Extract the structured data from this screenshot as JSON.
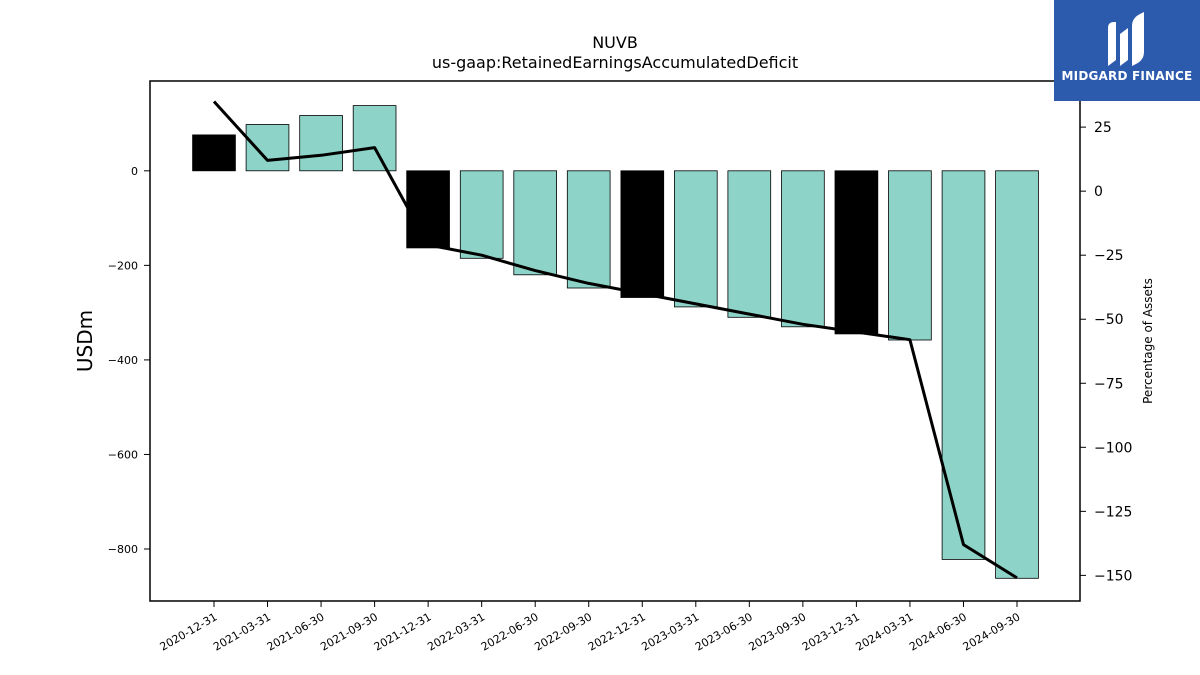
{
  "logo": {
    "text": "MIDGARD FINANCE",
    "bg_color": "#2c5aad"
  },
  "chart_data": {
    "type": "bar",
    "title": "NUVB",
    "subtitle": "us-gaap:RetainedEarningsAccumulatedDeficit",
    "ylabel": "USDm",
    "y2label": "Percentage of Assets",
    "categories": [
      "2020-12-31",
      "2021-03-31",
      "2021-06-30",
      "2021-09-30",
      "2021-12-31",
      "2022-03-31",
      "2022-06-30",
      "2022-09-30",
      "2022-12-31",
      "2023-03-31",
      "2023-06-30",
      "2023-09-30",
      "2023-12-31",
      "2024-03-31",
      "2024-06-30",
      "2024-09-30"
    ],
    "values": [
      76,
      98,
      117,
      138,
      -163,
      -185,
      -220,
      -248,
      -268,
      -288,
      -310,
      -330,
      -345,
      -358,
      -822,
      -862
    ],
    "bar_colors": [
      "#000000",
      "#8dd3c7",
      "#8dd3c7",
      "#8dd3c7",
      "#000000",
      "#8dd3c7",
      "#8dd3c7",
      "#8dd3c7",
      "#000000",
      "#8dd3c7",
      "#8dd3c7",
      "#8dd3c7",
      "#000000",
      "#8dd3c7",
      "#8dd3c7",
      "#8dd3c7"
    ],
    "line_series": {
      "name": "Percentage of Assets",
      "values": [
        35,
        12,
        14,
        17,
        -21,
        -25,
        -31,
        -36,
        -40,
        -44,
        -48,
        -52,
        -55,
        -58,
        -138,
        -151
      ]
    },
    "ylim": [
      -910,
      190
    ],
    "y2lim": [
      -160,
      43
    ],
    "yticks": [
      0,
      -200,
      -400,
      -600,
      -800
    ],
    "y2ticks": [
      25,
      0,
      -25,
      -50,
      -75,
      -100,
      -125,
      -150
    ],
    "grid": false
  }
}
